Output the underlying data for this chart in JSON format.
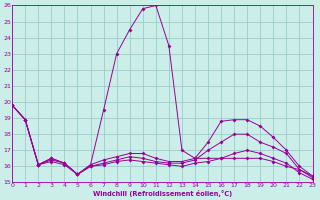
{
  "background_color": "#cceee8",
  "line_color": "#990099",
  "grid_color": "#99cccc",
  "xlabel": "Windchill (Refroidissement éolien,°C)",
  "ylim": [
    15,
    26
  ],
  "xlim": [
    0,
    23
  ],
  "yticks": [
    15,
    16,
    17,
    18,
    19,
    20,
    21,
    22,
    23,
    24,
    25,
    26
  ],
  "xticks": [
    0,
    1,
    2,
    3,
    4,
    5,
    6,
    7,
    8,
    9,
    10,
    11,
    12,
    13,
    14,
    15,
    16,
    17,
    18,
    19,
    20,
    21,
    22,
    23
  ],
  "series": [
    {
      "x": [
        0,
        1,
        2,
        3,
        4,
        5,
        6,
        7,
        8,
        9,
        10,
        11,
        12,
        13,
        14,
        15,
        16,
        17,
        18,
        19,
        20,
        21,
        22,
        23
      ],
      "y": [
        19.8,
        18.9,
        16.1,
        16.5,
        16.2,
        15.5,
        16.1,
        19.5,
        23.0,
        24.5,
        25.8,
        26.0,
        23.5,
        17.0,
        16.5,
        16.5,
        16.5,
        16.5,
        16.5,
        16.5,
        16.3,
        16.0,
        15.8,
        15.4
      ]
    },
    {
      "x": [
        0,
        1,
        2,
        3,
        4,
        5,
        6,
        7,
        8,
        9,
        10,
        11,
        12,
        13,
        14,
        15,
        16,
        17,
        18,
        19,
        20,
        21,
        22,
        23
      ],
      "y": [
        19.8,
        18.9,
        16.1,
        16.5,
        16.2,
        15.5,
        16.1,
        16.4,
        16.6,
        16.8,
        16.8,
        16.5,
        16.3,
        16.3,
        16.5,
        17.5,
        18.8,
        18.9,
        18.9,
        18.5,
        17.8,
        17.0,
        16.0,
        15.4
      ]
    },
    {
      "x": [
        0,
        1,
        2,
        3,
        4,
        5,
        6,
        7,
        8,
        9,
        10,
        11,
        12,
        13,
        14,
        15,
        16,
        17,
        18,
        19,
        20,
        21,
        22,
        23
      ],
      "y": [
        19.8,
        18.9,
        16.1,
        16.4,
        16.2,
        15.5,
        16.0,
        16.2,
        16.4,
        16.6,
        16.5,
        16.3,
        16.2,
        16.2,
        16.4,
        17.0,
        17.5,
        18.0,
        18.0,
        17.5,
        17.2,
        16.8,
        15.8,
        15.3
      ]
    },
    {
      "x": [
        0,
        1,
        2,
        3,
        4,
        5,
        6,
        7,
        8,
        9,
        10,
        11,
        12,
        13,
        14,
        15,
        16,
        17,
        18,
        19,
        20,
        21,
        22,
        23
      ],
      "y": [
        19.8,
        18.9,
        16.1,
        16.3,
        16.1,
        15.5,
        16.0,
        16.1,
        16.3,
        16.4,
        16.3,
        16.2,
        16.1,
        16.0,
        16.2,
        16.3,
        16.5,
        16.8,
        17.0,
        16.8,
        16.5,
        16.2,
        15.6,
        15.2
      ]
    }
  ]
}
